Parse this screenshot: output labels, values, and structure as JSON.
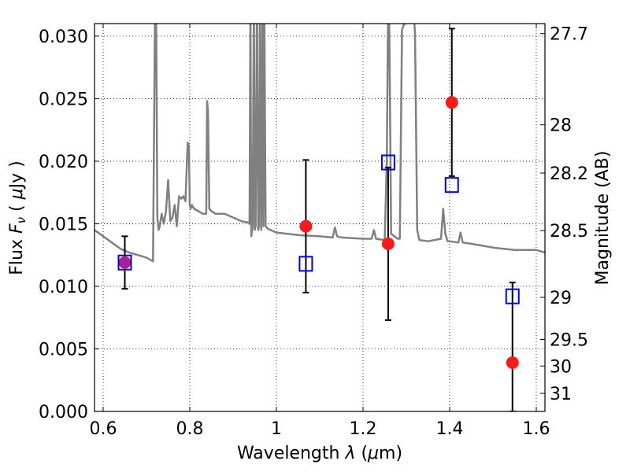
{
  "chart_data": {
    "type": "scatter",
    "title": "",
    "xlabel": "Wavelength  λ (μm)",
    "ylabel": "Flux  F_ν  ( μJy )",
    "ylabel_parts": {
      "prefix": "Flux  ",
      "symbol": "F",
      "subscript": "ν",
      "unit_open": "  ( ",
      "unit_mu": "μ",
      "unit_rest": "Jy )"
    },
    "xlabel_parts": {
      "prefix": "Wavelength  ",
      "symbol": "λ",
      "unit_open": " (",
      "unit_mu": "μ",
      "unit_rest": "m)"
    },
    "y2label": "Magnitude (AB)",
    "xlim": [
      0.58,
      1.62
    ],
    "ylim": [
      0.0,
      0.031
    ],
    "grid": true,
    "x_ticks": [
      {
        "value": 0.6,
        "label": "0.6"
      },
      {
        "value": 0.8,
        "label": "0.8"
      },
      {
        "value": 1.0,
        "label": "1"
      },
      {
        "value": 1.2,
        "label": "1.2"
      },
      {
        "value": 1.4,
        "label": "1.4"
      },
      {
        "value": 1.6,
        "label": "1.6"
      }
    ],
    "y_ticks": [
      {
        "value": 0.0,
        "label": "0.000"
      },
      {
        "value": 0.005,
        "label": "0.005"
      },
      {
        "value": 0.01,
        "label": "0.010"
      },
      {
        "value": 0.015,
        "label": "0.015"
      },
      {
        "value": 0.02,
        "label": "0.020"
      },
      {
        "value": 0.025,
        "label": "0.025"
      },
      {
        "value": 0.03,
        "label": "0.030"
      }
    ],
    "mag_ticks": [
      {
        "value": 27.7,
        "label": "27.7"
      },
      {
        "value": 28.0,
        "label": "28"
      },
      {
        "value": 28.2,
        "label": "28.2"
      },
      {
        "value": 28.5,
        "label": "28.5"
      },
      {
        "value": 29.0,
        "label": "29"
      },
      {
        "value": 29.5,
        "label": "29.5"
      },
      {
        "value": 30.0,
        "label": "30"
      },
      {
        "value": 31.0,
        "label": "31"
      }
    ],
    "series": [
      {
        "kind": "line",
        "color": "#808080",
        "x": [
          0.58,
          0.6,
          0.62,
          0.64,
          0.66,
          0.68,
          0.7,
          0.715,
          0.72,
          0.722,
          0.725,
          0.728,
          0.73,
          0.735,
          0.74,
          0.745,
          0.75,
          0.755,
          0.76,
          0.765,
          0.77,
          0.775,
          0.78,
          0.785,
          0.79,
          0.795,
          0.798,
          0.8,
          0.802,
          0.805,
          0.81,
          0.82,
          0.83,
          0.838,
          0.84,
          0.842,
          0.845,
          0.85,
          0.86,
          0.88,
          0.9,
          0.92,
          0.935,
          0.938,
          0.94,
          0.942,
          0.945,
          0.948,
          0.95,
          0.952,
          0.955,
          0.958,
          0.96,
          0.962,
          0.965,
          0.968,
          0.97,
          0.972,
          0.975,
          0.978,
          0.98,
          1.0,
          1.05,
          1.1,
          1.13,
          1.135,
          1.14,
          1.15,
          1.2,
          1.22,
          1.225,
          1.23,
          1.25,
          1.255,
          1.258,
          1.26,
          1.265,
          1.28,
          1.285,
          1.29,
          1.295,
          1.3,
          1.31,
          1.315,
          1.32,
          1.325,
          1.33,
          1.35,
          1.38,
          1.385,
          1.39,
          1.395,
          1.4,
          1.42,
          1.425,
          1.43,
          1.45,
          1.5,
          1.55,
          1.6,
          1.62
        ],
        "y": [
          0.0145,
          0.014,
          0.0135,
          0.013,
          0.0127,
          0.0125,
          0.0123,
          0.012,
          0.033,
          0.034,
          0.0155,
          0.0145,
          0.0147,
          0.0158,
          0.015,
          0.016,
          0.0185,
          0.0152,
          0.0155,
          0.0165,
          0.0148,
          0.0172,
          0.017,
          0.0172,
          0.0168,
          0.0215,
          0.0212,
          0.0165,
          0.0162,
          0.0165,
          0.0162,
          0.016,
          0.0158,
          0.0158,
          0.0248,
          0.024,
          0.0162,
          0.016,
          0.0158,
          0.0158,
          0.0155,
          0.0152,
          0.0151,
          0.015,
          0.033,
          0.014,
          0.0148,
          0.033,
          0.0145,
          0.0148,
          0.033,
          0.0145,
          0.0148,
          0.033,
          0.0145,
          0.033,
          0.0148,
          0.033,
          0.0148,
          0.0147,
          0.0146,
          0.0143,
          0.0141,
          0.014,
          0.0139,
          0.0147,
          0.014,
          0.0139,
          0.0138,
          0.0138,
          0.0145,
          0.0138,
          0.0137,
          0.02,
          0.033,
          0.033,
          0.0142,
          0.0138,
          0.0138,
          0.0305,
          0.031,
          0.031,
          0.033,
          0.033,
          0.0302,
          0.0145,
          0.0137,
          0.0136,
          0.0138,
          0.0162,
          0.0142,
          0.0136,
          0.0136,
          0.0135,
          0.0143,
          0.0135,
          0.0134,
          0.0131,
          0.0129,
          0.0129,
          0.0127
        ]
      },
      {
        "kind": "errorbar",
        "name": "",
        "marker": "circle",
        "color": "#ff1a1a",
        "x": [
          0.65,
          1.068,
          1.258,
          1.405,
          1.545
        ],
        "y": [
          0.0119,
          0.0148,
          0.0134,
          0.0247,
          0.0039
        ],
        "yerr_low": [
          0.0021,
          0.0053,
          0.0061,
          0.0059,
          0.0039
        ],
        "yerr_high": [
          0.0021,
          0.0053,
          0.0061,
          0.0059,
          0.0064
        ]
      },
      {
        "kind": "scatter",
        "name": "",
        "marker": "square-open",
        "color": "#0000ee",
        "x": [
          0.65,
          1.068,
          1.258,
          1.405,
          1.545
        ],
        "y": [
          0.0119,
          0.0118,
          0.0199,
          0.0181,
          0.0092
        ]
      }
    ],
    "overlap_marker": {
      "x": 0.65,
      "y": 0.0119,
      "color": "#a020a0"
    }
  }
}
